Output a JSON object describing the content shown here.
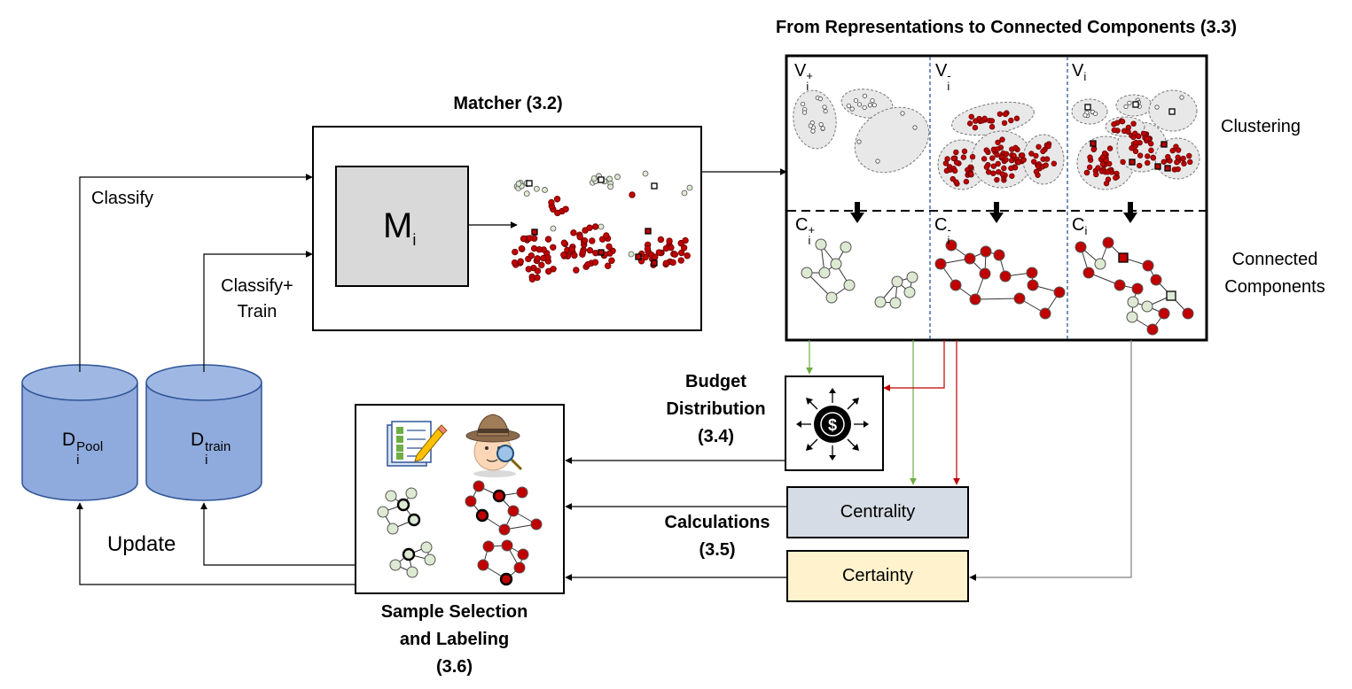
{
  "titles": {
    "cc": "From Representations to Connected Components (3.3)",
    "matcher": "Matcher (3.2)"
  },
  "matcher": {
    "model_base": "M",
    "model_sub": "i"
  },
  "edges": {
    "classify": "Classify",
    "classify_train_1": "Classify+",
    "classify_train_2": "Train",
    "update": "Update"
  },
  "databases": {
    "pool": {
      "base": "D",
      "sub": "i",
      "sup": "Pool"
    },
    "train": {
      "base": "D",
      "sub": "i",
      "sup": "train"
    }
  },
  "panels": {
    "v_plus": {
      "base": "V",
      "sub": "i",
      "sup": "+"
    },
    "v_minus": {
      "base": "V",
      "sub": "i",
      "sup": "-"
    },
    "v_all": {
      "base": "V",
      "sub": "i"
    },
    "c_plus": {
      "base": "C",
      "sub": "i",
      "sup": "+"
    },
    "c_minus": {
      "base": "C",
      "sub": "i",
      "sup": "-"
    },
    "c_all": {
      "base": "C",
      "sub": "i"
    }
  },
  "rows": {
    "clustering": "Clustering",
    "connected_1": "Connected",
    "connected_2": "Components"
  },
  "budget": {
    "line1": "Budget",
    "line2": "Distribution",
    "line3": "(3.4)"
  },
  "calc": {
    "line1": "Calculations",
    "line2": "(3.5)"
  },
  "boxes": {
    "centrality": "Centrality",
    "certainty": "Certainty"
  },
  "selection": {
    "line1": "Sample Selection",
    "line2": "and Labeling",
    "line3": "(3.6)"
  },
  "colors": {
    "positive_fill": "#dde9d2",
    "negative_fill": "#c00000",
    "database_fill": "#8faadc",
    "centrality_fill": "#d6dce5",
    "certainty_fill": "#fff2cc",
    "cluster_fill": "#e8e8e8",
    "model_fill": "#d9d9d9",
    "green_arrow": "#70ad47",
    "red_arrow": "#c00000",
    "divider_blue": "#2f5597"
  },
  "icons": [
    "checklist-icon",
    "detective-icon",
    "dollar-distribution-icon"
  ]
}
